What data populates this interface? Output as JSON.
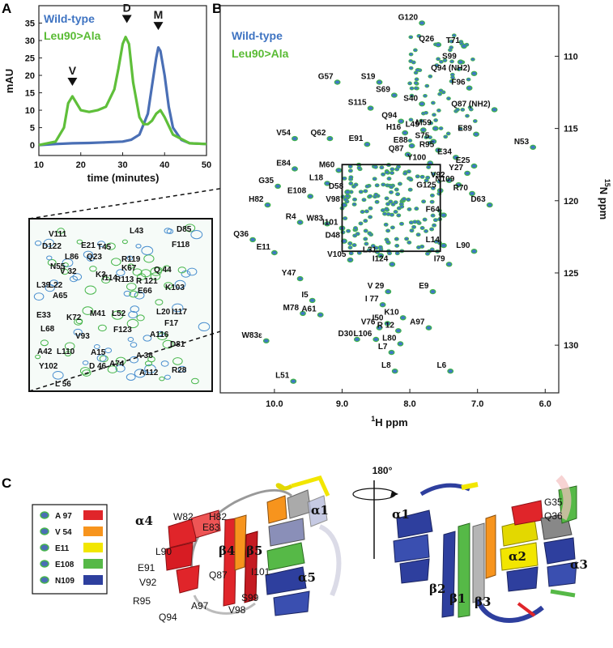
{
  "panels": {
    "a": "A",
    "b": "B",
    "c": "C"
  },
  "colors": {
    "wild_type": "#4a6fb5",
    "mutant": "#5fbf3a",
    "wt_text": "#3f74c2",
    "mut_text": "#59bb34"
  },
  "chart_data": [
    {
      "type": "line",
      "panel": "A",
      "xlabel": "time (minutes)",
      "ylabel": "mAU",
      "xlim": [
        10,
        50
      ],
      "ylim": [
        -3,
        40
      ],
      "xticks": [
        "10",
        "20",
        "30",
        "40",
        "50"
      ],
      "yticks": [
        "0",
        "5",
        "10",
        "15",
        "20",
        "25",
        "30",
        "35"
      ],
      "legend": [
        "Wild-type",
        "Leu90>Ala"
      ],
      "peak_labels": [
        {
          "text": "V",
          "x": 18,
          "y": 17
        },
        {
          "text": "D",
          "x": 31,
          "y": 35
        },
        {
          "text": "M",
          "x": 38.5,
          "y": 33
        }
      ],
      "series": [
        {
          "name": "Wild-type",
          "x": [
            10,
            14,
            18,
            22,
            26,
            30,
            32,
            34,
            36,
            37,
            38,
            38.5,
            39,
            40,
            41,
            42,
            44,
            46,
            50
          ],
          "y": [
            0,
            0.3,
            0.5,
            0.6,
            0.8,
            1,
            1.5,
            3,
            9,
            17,
            25,
            28,
            27,
            20,
            11,
            5,
            1.5,
            0.5,
            0.3
          ]
        },
        {
          "name": "Leu90>Ala",
          "x": [
            10,
            14,
            16,
            17,
            18,
            19,
            20,
            22,
            24,
            26,
            28,
            29,
            30,
            30.7,
            31.5,
            32.5,
            34,
            35,
            36,
            37,
            38,
            39,
            40,
            42,
            46,
            50
          ],
          "y": [
            0,
            1,
            5,
            12,
            14,
            12,
            10,
            9.5,
            10,
            11,
            16,
            22,
            29,
            31,
            29,
            18,
            8,
            6,
            6,
            7,
            9,
            10,
            8,
            3,
            0.5,
            0.3
          ]
        }
      ]
    },
    {
      "type": "scatter",
      "panel": "B",
      "xlabel": "1H ppm",
      "ylabel": "15N ppm",
      "xlim": [
        10.8,
        5.8
      ],
      "ylim": [
        133.3,
        106.5
      ],
      "xticks": [
        "10.0",
        "9.0",
        "8.0",
        "7.0",
        "6.0"
      ],
      "yticks": [
        "110",
        "115",
        "120",
        "125",
        "130"
      ],
      "legend": [
        "Wild-type",
        "Leu90>Ala"
      ],
      "zoom_box": {
        "x": [
          9.0,
          7.55
        ],
        "y": [
          117.5,
          123.5
        ]
      },
      "peaks": [
        {
          "label": "G120",
          "x": 7.82,
          "y": 107.7
        },
        {
          "label": "Q26",
          "x": 7.58,
          "y": 109.2
        },
        {
          "label": "T71",
          "x": 7.2,
          "y": 109.3
        },
        {
          "label": "S99",
          "x": 7.25,
          "y": 110.4
        },
        {
          "label": "Q94 (NH2)",
          "x": 7.05,
          "y": 111.2
        },
        {
          "label": "G57",
          "x": 9.07,
          "y": 111.8
        },
        {
          "label": "S19",
          "x": 8.45,
          "y": 111.8
        },
        {
          "label": "F96",
          "x": 7.12,
          "y": 112.2
        },
        {
          "label": "S69",
          "x": 8.23,
          "y": 112.7
        },
        {
          "label": "S40",
          "x": 7.82,
          "y": 113.3
        },
        {
          "label": "S115",
          "x": 8.58,
          "y": 113.6
        },
        {
          "label": "Q87 (NH2)",
          "x": 6.75,
          "y": 113.7
        },
        {
          "label": "Q94",
          "x": 8.13,
          "y": 114.5
        },
        {
          "label": "M59",
          "x": 7.62,
          "y": 115.0
        },
        {
          "label": "H16",
          "x": 8.07,
          "y": 115.3
        },
        {
          "label": "L49",
          "x": 7.8,
          "y": 115.1
        },
        {
          "label": "E89",
          "x": 7.02,
          "y": 115.4
        },
        {
          "label": "V54",
          "x": 9.7,
          "y": 115.7
        },
        {
          "label": "Q62",
          "x": 9.18,
          "y": 115.7
        },
        {
          "label": "S75",
          "x": 7.65,
          "y": 115.9
        },
        {
          "label": "E91",
          "x": 8.63,
          "y": 116.1
        },
        {
          "label": "E88",
          "x": 7.97,
          "y": 116.2
        },
        {
          "label": "N53",
          "x": 6.18,
          "y": 116.3
        },
        {
          "label": "R95",
          "x": 7.58,
          "y": 116.5
        },
        {
          "label": "Q87",
          "x": 8.03,
          "y": 116.8
        },
        {
          "label": "E34",
          "x": 7.32,
          "y": 117.0
        },
        {
          "label": "Y100",
          "x": 7.7,
          "y": 117.4
        },
        {
          "label": "E25",
          "x": 7.05,
          "y": 117.6
        },
        {
          "label": "E84",
          "x": 9.7,
          "y": 117.8
        },
        {
          "label": "M60",
          "x": 9.05,
          "y": 117.9
        },
        {
          "label": "Y27",
          "x": 7.15,
          "y": 118.1
        },
        {
          "label": "V92",
          "x": 7.42,
          "y": 118.6
        },
        {
          "label": "L18",
          "x": 9.22,
          "y": 118.8
        },
        {
          "label": "N109",
          "x": 7.28,
          "y": 118.9
        },
        {
          "label": "G35",
          "x": 9.95,
          "y": 119.0
        },
        {
          "label": "G125",
          "x": 7.55,
          "y": 119.3
        },
        {
          "label": "D58",
          "x": 8.92,
          "y": 119.4
        },
        {
          "label": "R70",
          "x": 7.08,
          "y": 119.5
        },
        {
          "label": "E108",
          "x": 9.47,
          "y": 119.7
        },
        {
          "label": "H82",
          "x": 10.1,
          "y": 120.3
        },
        {
          "label": "V98",
          "x": 8.97,
          "y": 120.3
        },
        {
          "label": "D63",
          "x": 6.82,
          "y": 120.3
        },
        {
          "label": "F64",
          "x": 7.5,
          "y": 121.0
        },
        {
          "label": "W83",
          "x": 9.22,
          "y": 121.6
        },
        {
          "label": "R4",
          "x": 9.62,
          "y": 121.5
        },
        {
          "label": "I101",
          "x": 9.0,
          "y": 121.9
        },
        {
          "label": "Q36",
          "x": 10.32,
          "y": 122.7
        },
        {
          "label": "D48",
          "x": 8.97,
          "y": 122.8
        },
        {
          "label": "L14",
          "x": 7.5,
          "y": 123.1
        },
        {
          "label": "E11",
          "x": 10.0,
          "y": 123.6
        },
        {
          "label": "L90",
          "x": 7.05,
          "y": 123.5
        },
        {
          "label": "V105",
          "x": 8.88,
          "y": 124.1
        },
        {
          "label": "L31",
          "x": 8.43,
          "y": 123.8
        },
        {
          "label": "I124",
          "x": 8.26,
          "y": 124.4
        },
        {
          "label": "I79",
          "x": 7.42,
          "y": 124.4
        },
        {
          "label": "Y47",
          "x": 9.62,
          "y": 125.4
        },
        {
          "label": "V 29",
          "x": 8.32,
          "y": 126.3
        },
        {
          "label": "E9",
          "x": 7.66,
          "y": 126.3
        },
        {
          "label": "I5",
          "x": 9.44,
          "y": 126.9
        },
        {
          "label": "I 77",
          "x": 8.4,
          "y": 127.2
        },
        {
          "label": "M78",
          "x": 9.58,
          "y": 127.8
        },
        {
          "label": "A61",
          "x": 9.32,
          "y": 127.9
        },
        {
          "label": "K10",
          "x": 8.1,
          "y": 128.1
        },
        {
          "label": "I50",
          "x": 8.33,
          "y": 128.5
        },
        {
          "label": "V76",
          "x": 8.45,
          "y": 128.8
        },
        {
          "label": "A97",
          "x": 7.72,
          "y": 128.8
        },
        {
          "label": "R 12",
          "x": 8.17,
          "y": 129.0
        },
        {
          "label": "W83ε",
          "x": 10.12,
          "y": 129.7
        },
        {
          "label": "D30",
          "x": 8.78,
          "y": 129.6
        },
        {
          "label": "L106",
          "x": 8.5,
          "y": 129.6
        },
        {
          "label": "L80",
          "x": 8.14,
          "y": 129.9
        },
        {
          "label": "L7",
          "x": 8.27,
          "y": 130.5
        },
        {
          "label": "L8",
          "x": 8.22,
          "y": 131.8
        },
        {
          "label": "L6",
          "x": 7.4,
          "y": 131.8
        },
        {
          "label": "L51",
          "x": 9.72,
          "y": 132.5
        }
      ]
    }
  ],
  "inset_labels": [
    "V111",
    "L43",
    "D85",
    "D122",
    "E21",
    "T45",
    "F118",
    "L86",
    "Q23",
    "R119",
    "N55",
    "K67",
    "Q 44",
    "V 32",
    "K3",
    "I114",
    "L39",
    "L22",
    "R113",
    "R 121",
    "A65",
    "E66",
    "K103",
    "M41",
    "E33",
    "K72",
    "L52",
    "L20",
    "I117",
    "L68",
    "F123",
    "F17",
    "V93",
    "A116",
    "A42",
    "D81",
    "L110",
    "A15",
    "A 38",
    "D 46",
    "A74",
    "Y102",
    "A112",
    "R28",
    "L 56"
  ],
  "panel_c": {
    "rotation": "180°",
    "legend": [
      {
        "residue": "A 97",
        "color": "#e0252a"
      },
      {
        "residue": "V 54",
        "color": "#f7941d"
      },
      {
        "residue": "E11",
        "color": "#f2e600"
      },
      {
        "residue": "E108",
        "color": "#56b947"
      },
      {
        "residue": "N109",
        "color": "#2e3f9e"
      }
    ],
    "left_labels": [
      "W82",
      "H82",
      "E83",
      "α4",
      "β1",
      "β4",
      "β5",
      "L90",
      "Q87",
      "E91",
      "V92",
      "I101",
      "R95",
      "A97",
      "S99",
      "Q94",
      "V98",
      "α5"
    ],
    "right_labels": [
      "α1",
      "G35",
      "Q36",
      "α3",
      "β2",
      "β1",
      "β3",
      "α2"
    ]
  }
}
